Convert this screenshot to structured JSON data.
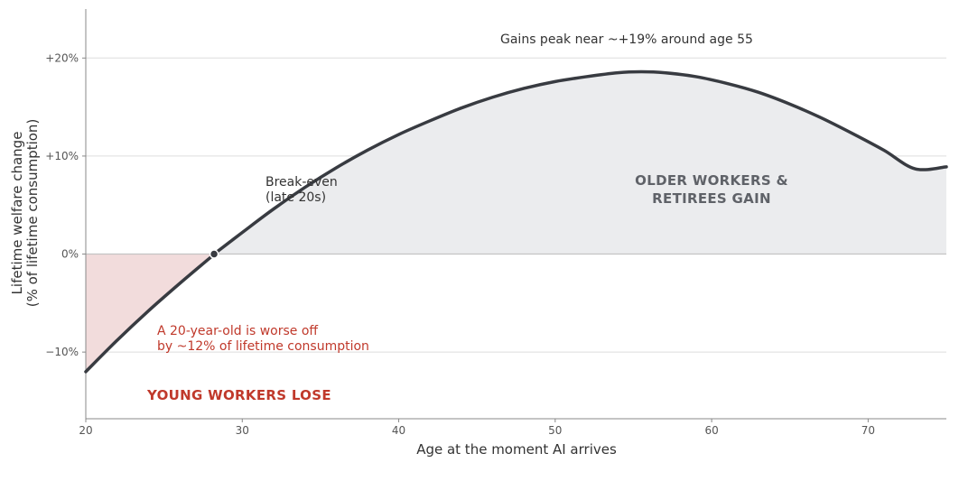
{
  "chart_data": {
    "type": "line",
    "title": "",
    "xlabel": "Age at the moment AI arrives",
    "ylabel_line1": "Lifetime welfare change",
    "ylabel_line2": "(% of lifetime consumption)",
    "xlim": [
      20,
      75
    ],
    "ylim": [
      -16.8,
      25
    ],
    "x_ticks": [
      20,
      30,
      40,
      50,
      60,
      70
    ],
    "x_tick_labels": [
      "20",
      "30",
      "40",
      "50",
      "60",
      "70"
    ],
    "y_ticks": [
      -10,
      0,
      10,
      20
    ],
    "y_tick_labels": [
      "−10%",
      "0%",
      "+10%",
      "+20%"
    ],
    "grid": "horizontal",
    "colors": {
      "curve": "#383b41",
      "loss_fill": "#f2dcdc",
      "gain_fill": "#ebecee",
      "loss_text": "#c0392b",
      "gain_text": "#5f6268",
      "grid": "#dddddd",
      "axis": "#888888"
    },
    "series": [
      {
        "x": [
          20,
          22,
          24,
          26,
          28,
          28.2,
          30,
          32,
          34,
          36,
          38,
          40,
          42,
          44,
          46,
          48,
          50,
          52,
          54,
          55.5,
          57,
          59,
          61,
          63,
          65,
          67,
          69,
          71,
          73,
          75
        ],
        "y": [
          -12.0,
          -8.8,
          -5.8,
          -3.0,
          -0.3,
          0.0,
          2.2,
          4.6,
          6.8,
          8.8,
          10.6,
          12.2,
          13.6,
          14.9,
          16.0,
          16.9,
          17.6,
          18.1,
          18.5,
          18.6,
          18.5,
          18.1,
          17.4,
          16.5,
          15.3,
          13.9,
          12.3,
          10.6,
          8.7,
          8.9
        ]
      }
    ],
    "break_even": {
      "x": 28.2,
      "y": 0
    },
    "annotations": {
      "peak": "Gains peak near ~+19% around age 55",
      "break_even_line1": "Break-even",
      "break_even_line2": "(late 20s)",
      "gain_line1": "OLDER WORKERS &",
      "gain_line2": "RETIREES GAIN",
      "worse_line1": "A 20-year-old is worse off",
      "worse_line2": "by ~12% of lifetime consumption",
      "lose": "YOUNG WORKERS LOSE"
    }
  }
}
